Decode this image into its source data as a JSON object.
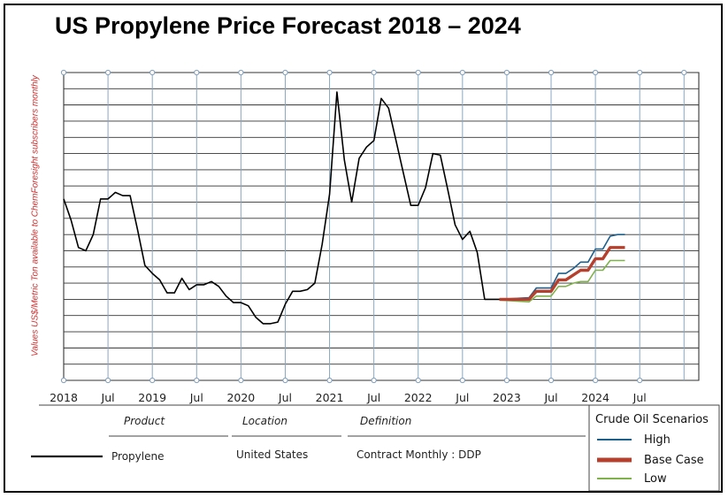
{
  "title": "US Propylene Price Forecast 2018 – 2024",
  "ylabel": "Values US$/Metric Ton available to ChemForesight subscribers monthly",
  "chart_data": {
    "type": "line",
    "title": "US Propylene Price Forecast 2018 – 2024",
    "ylabel": "Values US$/Metric Ton available to ChemForesight subscribers monthly",
    "xlabel": "",
    "x_ticks": [
      {
        "t": 0,
        "label": "2018"
      },
      {
        "t": 6,
        "label": "Jul"
      },
      {
        "t": 12,
        "label": "2019"
      },
      {
        "t": 18,
        "label": "Jul"
      },
      {
        "t": 24,
        "label": "2020"
      },
      {
        "t": 30,
        "label": "Jul"
      },
      {
        "t": 36,
        "label": "2021"
      },
      {
        "t": 42,
        "label": "Jul"
      },
      {
        "t": 48,
        "label": "2022"
      },
      {
        "t": 54,
        "label": "Jul"
      },
      {
        "t": 60,
        "label": "2023"
      },
      {
        "t": 66,
        "label": "Jul"
      },
      {
        "t": 72,
        "label": "2024"
      },
      {
        "t": 78,
        "label": "Jul"
      }
    ],
    "xlim": [
      0,
      86
    ],
    "ylim": [
      0,
      19
    ],
    "y_gridlines": 19,
    "grid": true,
    "y_values_note": "y axis has no numeric labels; values are relative index units 0-19 estimated from gridlines",
    "series": [
      {
        "name": "Propylene",
        "color": "#000000",
        "points": [
          [
            0,
            11.2
          ],
          [
            1,
            9.9
          ],
          [
            2,
            8.2
          ],
          [
            3,
            8.0
          ],
          [
            4,
            9.0
          ],
          [
            5,
            11.2
          ],
          [
            6,
            11.2
          ],
          [
            7,
            11.6
          ],
          [
            8,
            11.4
          ],
          [
            9,
            11.4
          ],
          [
            10,
            9.3
          ],
          [
            11,
            7.1
          ],
          [
            12,
            6.6
          ],
          [
            13,
            6.2
          ],
          [
            14,
            5.4
          ],
          [
            15,
            5.4
          ],
          [
            16,
            6.3
          ],
          [
            17,
            5.6
          ],
          [
            18,
            5.9
          ],
          [
            19,
            5.9
          ],
          [
            20,
            6.1
          ],
          [
            21,
            5.8
          ],
          [
            22,
            5.2
          ],
          [
            23,
            4.8
          ],
          [
            24,
            4.8
          ],
          [
            25,
            4.6
          ],
          [
            26,
            3.9
          ],
          [
            27,
            3.5
          ],
          [
            28,
            3.5
          ],
          [
            29,
            3.6
          ],
          [
            30,
            4.7
          ],
          [
            31,
            5.5
          ],
          [
            32,
            5.5
          ],
          [
            33,
            5.6
          ],
          [
            34,
            6.0
          ],
          [
            35,
            8.4
          ],
          [
            36,
            11.5
          ],
          [
            37,
            17.8
          ],
          [
            38,
            13.6
          ],
          [
            39,
            11.0
          ],
          [
            40,
            13.7
          ],
          [
            41,
            14.4
          ],
          [
            42,
            14.8
          ],
          [
            43,
            17.4
          ],
          [
            44,
            16.8
          ],
          [
            45,
            14.8
          ],
          [
            46,
            12.8
          ],
          [
            47,
            10.8
          ],
          [
            48,
            10.8
          ],
          [
            49,
            11.9
          ],
          [
            50,
            14.0
          ],
          [
            51,
            13.9
          ],
          [
            52,
            11.8
          ],
          [
            53,
            9.6
          ],
          [
            54,
            8.7
          ],
          [
            55,
            9.2
          ],
          [
            56,
            7.9
          ],
          [
            57,
            5.0
          ],
          [
            58,
            5.0
          ],
          [
            59,
            5.0
          ]
        ]
      },
      {
        "name": "High",
        "color": "#1f5f8b",
        "points": [
          [
            59,
            5.0
          ],
          [
            63,
            5.1
          ],
          [
            64,
            5.7
          ],
          [
            65,
            5.7
          ],
          [
            66,
            5.7
          ],
          [
            67,
            6.6
          ],
          [
            68,
            6.6
          ],
          [
            69,
            6.9
          ],
          [
            70,
            7.3
          ],
          [
            71,
            7.3
          ],
          [
            72,
            8.1
          ],
          [
            73,
            8.1
          ],
          [
            74,
            8.9
          ],
          [
            75,
            9.0
          ],
          [
            76,
            9.0
          ]
        ]
      },
      {
        "name": "Base Case",
        "color": "#b5402e",
        "points": [
          [
            59,
            5.0
          ],
          [
            63,
            5.0
          ],
          [
            64,
            5.5
          ],
          [
            65,
            5.5
          ],
          [
            66,
            5.5
          ],
          [
            67,
            6.2
          ],
          [
            68,
            6.2
          ],
          [
            69,
            6.5
          ],
          [
            70,
            6.8
          ],
          [
            71,
            6.8
          ],
          [
            72,
            7.5
          ],
          [
            73,
            7.5
          ],
          [
            74,
            8.2
          ],
          [
            75,
            8.2
          ],
          [
            76,
            8.2
          ]
        ]
      },
      {
        "name": "Low",
        "color": "#7fb24a",
        "points": [
          [
            59,
            4.95
          ],
          [
            63,
            4.85
          ],
          [
            64,
            5.2
          ],
          [
            65,
            5.2
          ],
          [
            66,
            5.2
          ],
          [
            67,
            5.8
          ],
          [
            68,
            5.8
          ],
          [
            69,
            6.0
          ],
          [
            70,
            6.1
          ],
          [
            71,
            6.1
          ],
          [
            72,
            6.8
          ],
          [
            73,
            6.8
          ],
          [
            74,
            7.4
          ],
          [
            75,
            7.4
          ],
          [
            76,
            7.4
          ]
        ]
      }
    ]
  },
  "table": {
    "headers": {
      "product": "Product",
      "location": "Location",
      "definition": "Definition"
    },
    "row": {
      "product": "Propylene",
      "location": "United States",
      "definition": "Contract Monthly : DDP"
    }
  },
  "legend": {
    "title": "Crude Oil Scenarios",
    "items": [
      {
        "label": "High",
        "color": "#1f5f8b"
      },
      {
        "label": "Base Case",
        "color": "#b5402e"
      },
      {
        "label": "Low",
        "color": "#7fb24a"
      }
    ]
  }
}
